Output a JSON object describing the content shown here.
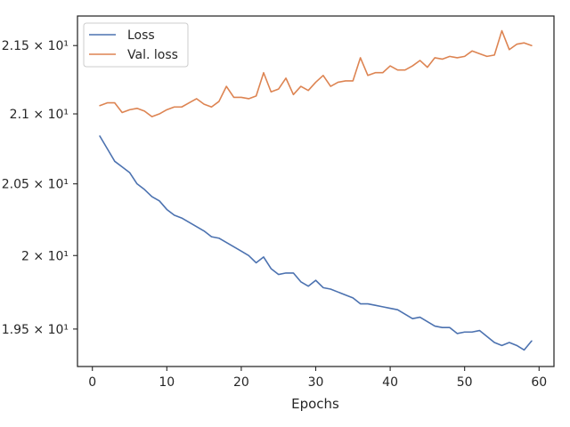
{
  "chart_data": {
    "type": "line",
    "xlabel": "Epochs",
    "ylabel": "",
    "scale": "log",
    "xlim": [
      -2,
      62
    ],
    "ylim": [
      19.25,
      21.72
    ],
    "xticks": [
      0,
      10,
      20,
      30,
      40,
      50,
      60
    ],
    "xtick_labels": [
      "0",
      "10",
      "20",
      "30",
      "40",
      "50",
      "60"
    ],
    "yticks": [
      19.5,
      20,
      20.5,
      21,
      21.5
    ],
    "ytick_labels": [
      "1.95 × 10¹",
      "2 × 10¹",
      "2.05 × 10¹",
      "2.1 × 10¹",
      "2.15 × 10¹"
    ],
    "grid": false,
    "legend": "top-left",
    "colors": {
      "Loss": "#4c72b0",
      "Val. loss": "#dd8452"
    },
    "x": [
      1,
      2,
      3,
      4,
      5,
      6,
      7,
      8,
      9,
      10,
      11,
      12,
      13,
      14,
      15,
      16,
      17,
      18,
      19,
      20,
      21,
      22,
      23,
      24,
      25,
      26,
      27,
      28,
      29,
      30,
      31,
      32,
      33,
      34,
      35,
      36,
      37,
      38,
      39,
      40,
      41,
      42,
      43,
      44,
      45,
      46,
      47,
      48,
      49,
      50,
      51,
      52,
      53,
      54,
      55,
      56,
      57,
      58,
      59
    ],
    "series": [
      {
        "name": "Loss",
        "values": [
          20.84,
          20.75,
          20.66,
          20.62,
          20.58,
          20.5,
          20.46,
          20.41,
          20.38,
          20.32,
          20.28,
          20.26,
          20.23,
          20.2,
          20.17,
          20.13,
          20.12,
          20.09,
          20.06,
          20.03,
          20.0,
          19.95,
          19.99,
          19.91,
          19.87,
          19.88,
          19.88,
          19.82,
          19.79,
          19.83,
          19.78,
          19.77,
          19.75,
          19.73,
          19.71,
          19.67,
          19.67,
          19.66,
          19.65,
          19.64,
          19.63,
          19.6,
          19.57,
          19.58,
          19.55,
          19.52,
          19.51,
          19.51,
          19.47,
          19.48,
          19.48,
          19.49,
          19.45,
          19.41,
          19.39,
          19.41,
          19.39,
          19.36,
          19.42
        ]
      },
      {
        "name": "Val. loss",
        "values": [
          21.06,
          21.08,
          21.08,
          21.01,
          21.03,
          21.04,
          21.02,
          20.98,
          21.0,
          21.03,
          21.05,
          21.05,
          21.08,
          21.11,
          21.07,
          21.05,
          21.09,
          21.2,
          21.12,
          21.12,
          21.11,
          21.13,
          21.3,
          21.16,
          21.18,
          21.26,
          21.14,
          21.2,
          21.17,
          21.23,
          21.28,
          21.2,
          21.23,
          21.24,
          21.24,
          21.41,
          21.28,
          21.3,
          21.3,
          21.35,
          21.32,
          21.32,
          21.35,
          21.39,
          21.34,
          21.41,
          21.4,
          21.42,
          21.41,
          21.42,
          21.46,
          21.44,
          21.42,
          21.43,
          21.61,
          21.47,
          21.51,
          21.52,
          21.5
        ]
      }
    ]
  }
}
